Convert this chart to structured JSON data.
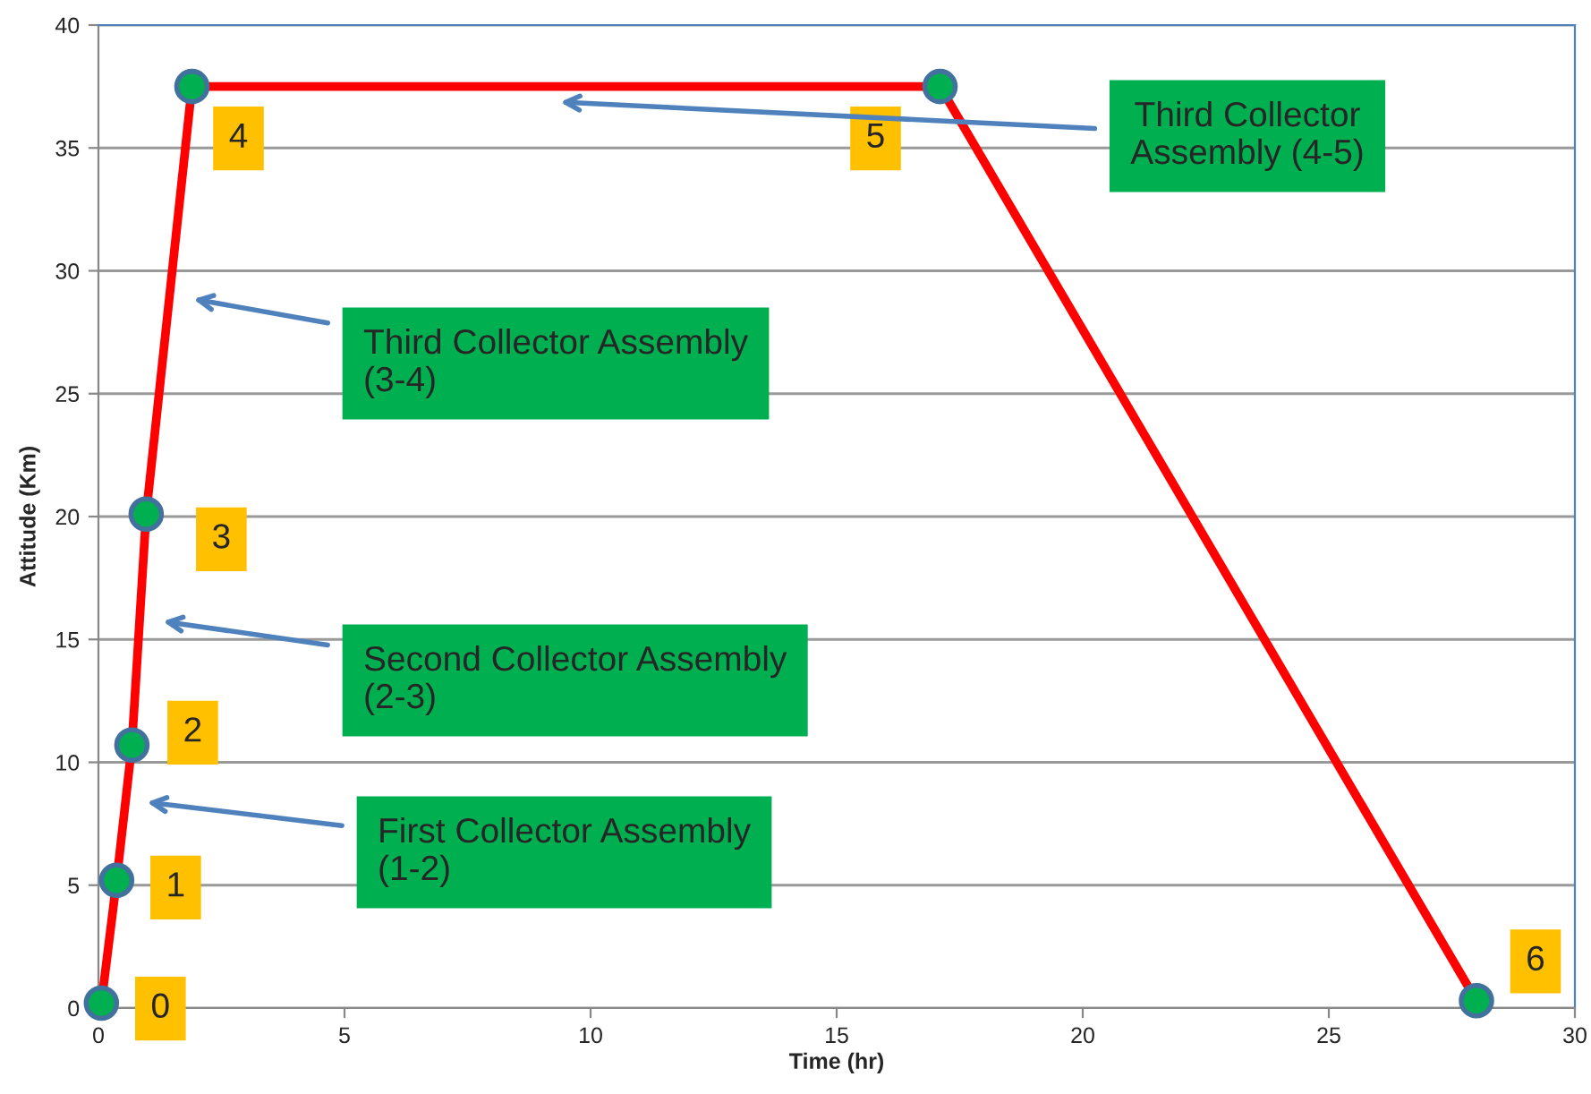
{
  "chart_data": {
    "type": "line",
    "xlabel": "Time (hr)",
    "ylabel": "Attitude (Km)",
    "x": [
      0.06,
      0.37,
      0.68,
      0.97,
      1.9,
      17.1,
      28.0
    ],
    "series": [
      {
        "color": "#ff0000",
        "colors": [
          "#00b050",
          "#00b050",
          "#00b050",
          "#00b050",
          "#00b050",
          "#00b050",
          "#00b050"
        ],
        "values": [
          0.2,
          5.2,
          10.7,
          20.1,
          37.5,
          37.5,
          0.3
        ]
      }
    ],
    "xlim": [
      0,
      30
    ],
    "ylim": [
      0,
      40
    ],
    "xticks": [
      0,
      5,
      10,
      15,
      20,
      25,
      30
    ],
    "yticks": [
      0,
      5,
      10,
      15,
      20,
      25,
      30,
      35,
      40
    ],
    "grid": "y",
    "marker": "circle",
    "line_style": "solid",
    "annotations": [
      {
        "text": "0",
        "x": 0.06,
        "y": 0.2
      },
      {
        "text": "1",
        "x": 0.37,
        "y": 5.2
      },
      {
        "text": "2",
        "x": 0.68,
        "y": 10.7
      },
      {
        "text": "3",
        "x": 0.97,
        "y": 20.1
      },
      {
        "text": "4",
        "x": 1.9,
        "y": 37.5
      },
      {
        "text": "5",
        "x": 17.1,
        "y": 37.5
      },
      {
        "text": "6",
        "x": 28.0,
        "y": 0.3
      },
      "First Collector Assembly\n(1-2)",
      "Second Collector Assembly\n(2-3)",
      "Third Collector Assembly\n(3-4)",
      "Third Collector\nAssembly (4-5)"
    ]
  }
}
